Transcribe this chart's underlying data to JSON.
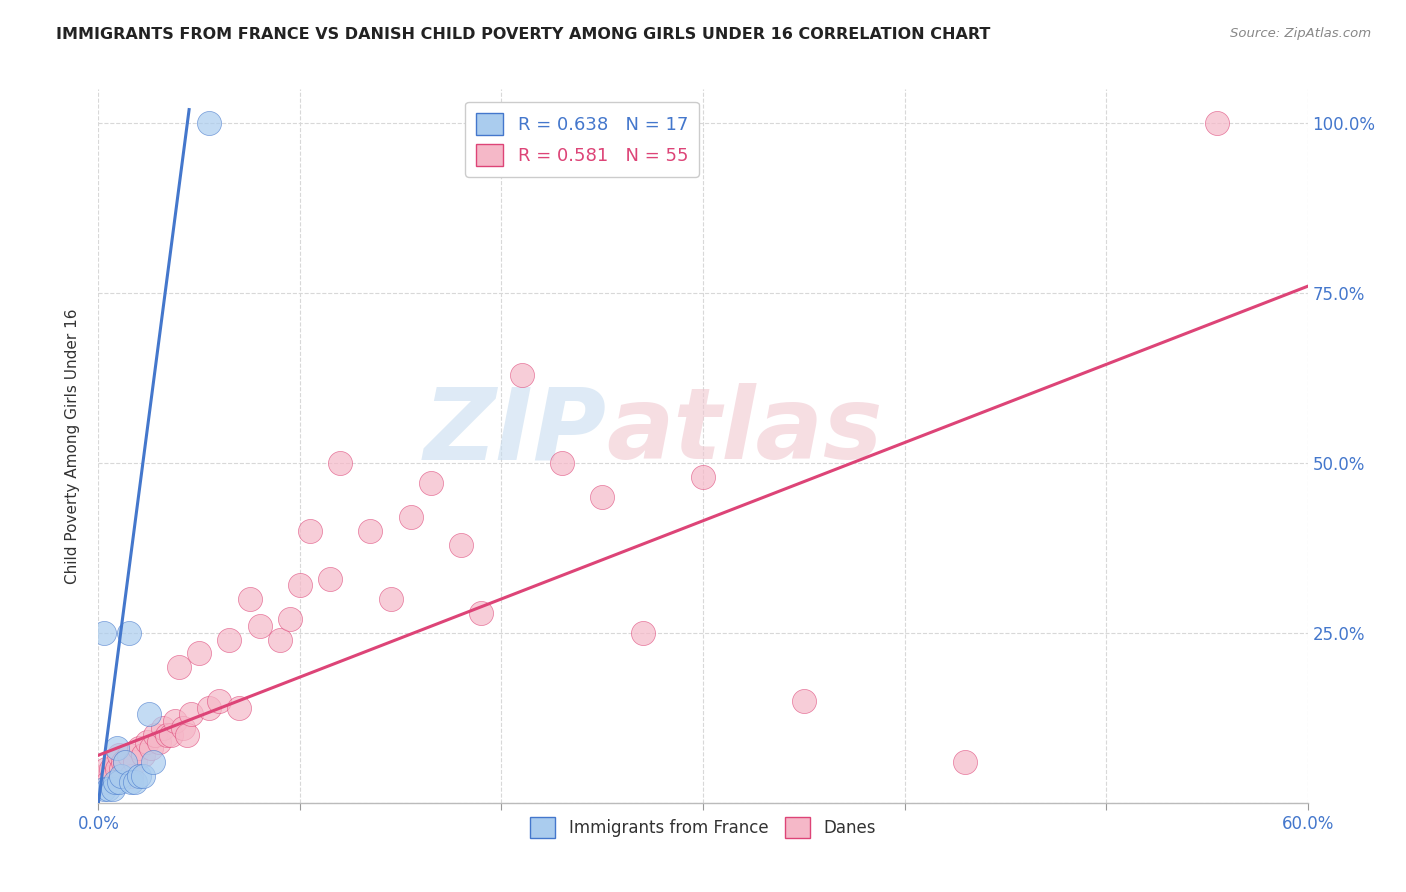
{
  "title": "IMMIGRANTS FROM FRANCE VS DANISH CHILD POVERTY AMONG GIRLS UNDER 16 CORRELATION CHART",
  "source": "Source: ZipAtlas.com",
  "ylabel": "Child Poverty Among Girls Under 16",
  "xlim": [
    0,
    0.6
  ],
  "ylim": [
    0,
    1.05
  ],
  "xticks": [
    0.0,
    0.1,
    0.2,
    0.3,
    0.4,
    0.5,
    0.6
  ],
  "ytick_labels_right": [
    "",
    "25.0%",
    "50.0%",
    "75.0%",
    "100.0%"
  ],
  "ytick_vals_right": [
    0.0,
    0.25,
    0.5,
    0.75,
    1.0
  ],
  "legend_blue_r": "R = 0.638",
  "legend_blue_n": "N = 17",
  "legend_pink_r": "R = 0.581",
  "legend_pink_n": "N = 55",
  "blue_color": "#aaccee",
  "pink_color": "#f5b8c8",
  "blue_line_color": "#4477cc",
  "pink_line_color": "#dd4477",
  "blue_scatter_x": [
    0.003,
    0.005,
    0.007,
    0.008,
    0.009,
    0.01,
    0.011,
    0.013,
    0.015,
    0.016,
    0.018,
    0.02,
    0.022,
    0.025,
    0.027,
    0.055,
    0.003
  ],
  "blue_scatter_y": [
    0.02,
    0.02,
    0.02,
    0.03,
    0.08,
    0.03,
    0.04,
    0.06,
    0.25,
    0.03,
    0.03,
    0.04,
    0.04,
    0.13,
    0.06,
    1.0,
    0.25
  ],
  "pink_scatter_x": [
    0.003,
    0.004,
    0.005,
    0.006,
    0.007,
    0.008,
    0.009,
    0.01,
    0.011,
    0.012,
    0.013,
    0.015,
    0.016,
    0.018,
    0.02,
    0.022,
    0.024,
    0.026,
    0.028,
    0.03,
    0.032,
    0.034,
    0.036,
    0.038,
    0.04,
    0.042,
    0.044,
    0.046,
    0.05,
    0.055,
    0.06,
    0.065,
    0.07,
    0.075,
    0.08,
    0.09,
    0.095,
    0.1,
    0.105,
    0.115,
    0.12,
    0.135,
    0.145,
    0.155,
    0.165,
    0.18,
    0.19,
    0.21,
    0.23,
    0.25,
    0.27,
    0.3,
    0.35,
    0.43,
    0.555
  ],
  "pink_scatter_y": [
    0.04,
    0.05,
    0.03,
    0.05,
    0.04,
    0.06,
    0.05,
    0.07,
    0.05,
    0.06,
    0.06,
    0.07,
    0.04,
    0.06,
    0.08,
    0.07,
    0.09,
    0.08,
    0.1,
    0.09,
    0.11,
    0.1,
    0.1,
    0.12,
    0.2,
    0.11,
    0.1,
    0.13,
    0.22,
    0.14,
    0.15,
    0.24,
    0.14,
    0.3,
    0.26,
    0.24,
    0.27,
    0.32,
    0.4,
    0.33,
    0.5,
    0.4,
    0.3,
    0.42,
    0.47,
    0.38,
    0.28,
    0.63,
    0.5,
    0.45,
    0.25,
    0.48,
    0.15,
    0.06,
    1.0
  ],
  "blue_trend_x": [
    0.0,
    0.045
  ],
  "blue_trend_y": [
    0.0,
    1.02
  ],
  "pink_trend_x": [
    0.0,
    0.6
  ],
  "pink_trend_y": [
    0.07,
    0.76
  ],
  "watermark_zip": "ZIP",
  "watermark_atlas": "atlas",
  "background_color": "#ffffff",
  "grid_color": "#d8d8d8"
}
